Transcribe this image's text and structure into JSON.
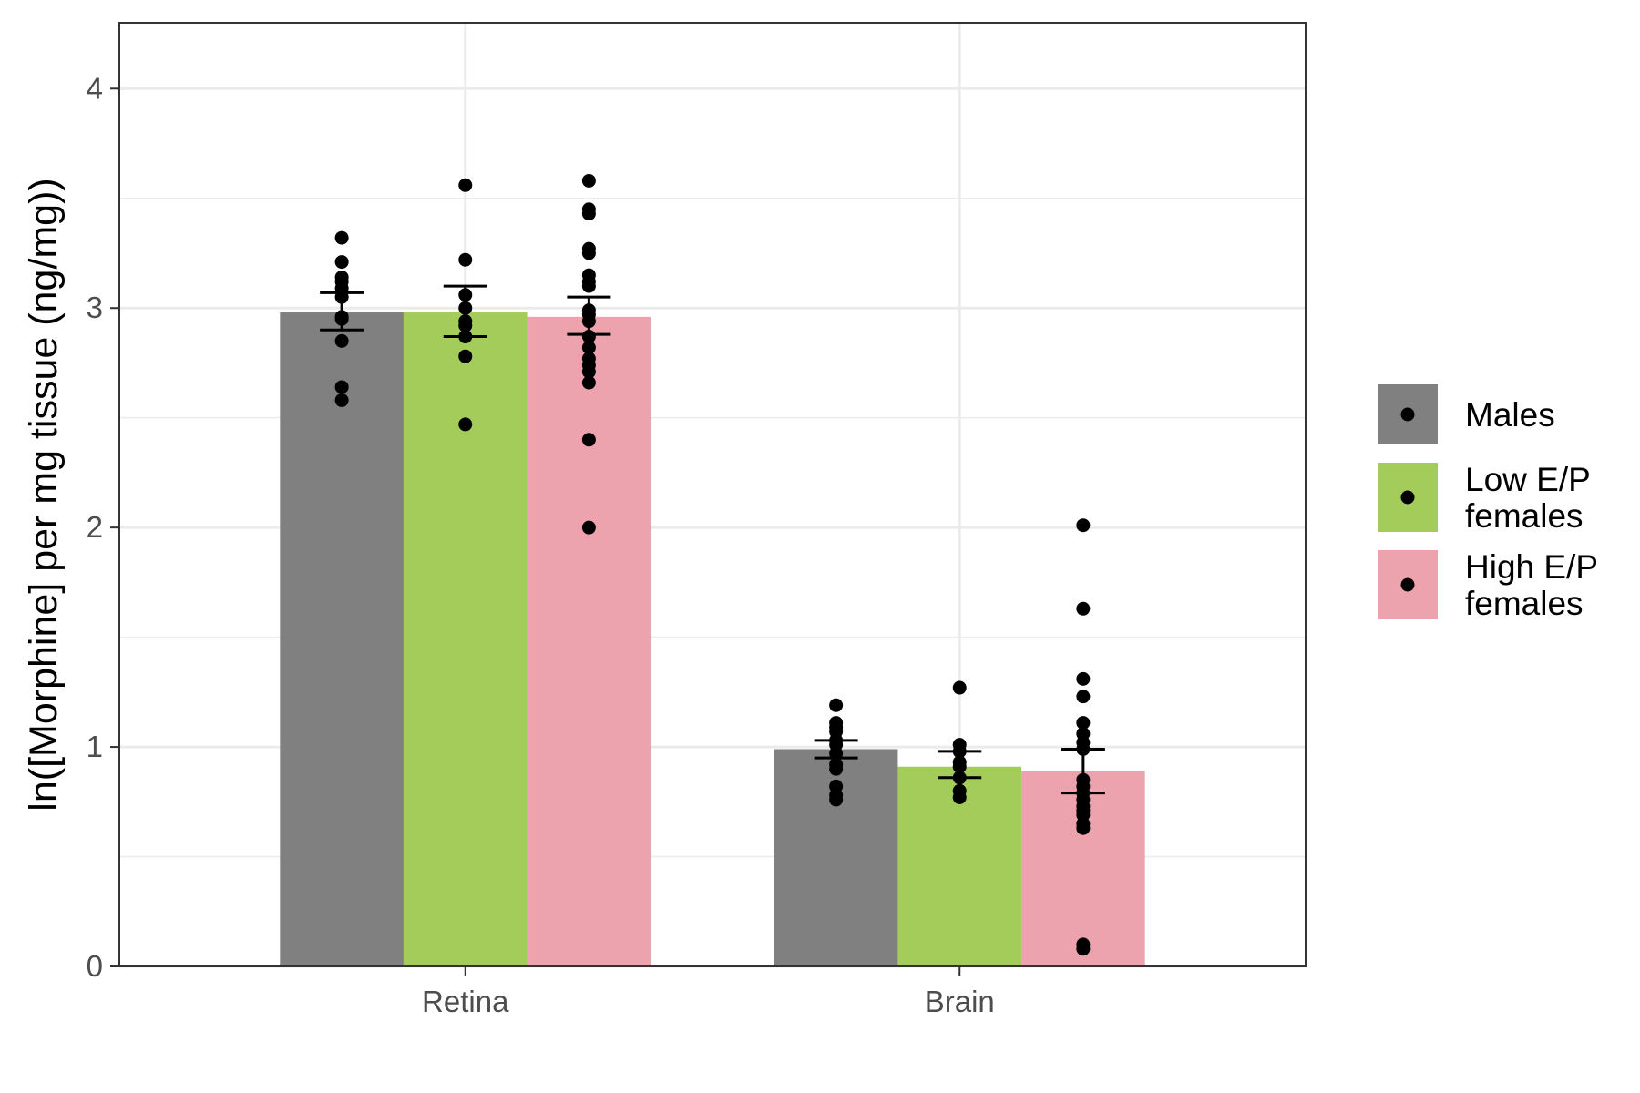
{
  "chart_data": {
    "type": "bar",
    "title": "",
    "xlabel": "",
    "ylabel": "ln([Morphine] per mg tissue (ng/mg))",
    "categories": [
      "Retina",
      "Brain"
    ],
    "ylim": [
      0,
      4.3
    ],
    "yticks": [
      0,
      1,
      2,
      3,
      4
    ],
    "grid": true,
    "legend_position": "right",
    "series": [
      {
        "name": "Males",
        "color": "#808080",
        "values": [
          2.98,
          0.99
        ],
        "se": [
          [
            2.9,
            3.07
          ],
          [
            0.95,
            1.03
          ]
        ],
        "points": [
          [
            3.32,
            3.21,
            3.14,
            3.12,
            3.09,
            3.05,
            2.96,
            2.95,
            2.85,
            2.64,
            2.58
          ],
          [
            1.19,
            1.11,
            1.09,
            1.07,
            1.03,
            1.01,
            0.97,
            0.92,
            0.9,
            0.82,
            0.78,
            0.76
          ]
        ]
      },
      {
        "name": "Low E/P\nfemales",
        "color": "#a3cc5b",
        "values": [
          2.98,
          0.91
        ],
        "se": [
          [
            2.87,
            3.1
          ],
          [
            0.86,
            0.98
          ]
        ],
        "points": [
          [
            3.56,
            3.22,
            3.06,
            3.0,
            2.94,
            2.92,
            2.87,
            2.78,
            2.47
          ],
          [
            1.27,
            1.01,
            0.98,
            0.93,
            0.91,
            0.86,
            0.8,
            0.77
          ]
        ]
      },
      {
        "name": "High E/P\nfemales",
        "color": "#eca3ae",
        "values": [
          2.96,
          0.89
        ],
        "se": [
          [
            2.88,
            3.05
          ],
          [
            0.79,
            0.99
          ]
        ],
        "points": [
          [
            3.58,
            3.45,
            3.43,
            3.27,
            3.25,
            3.15,
            3.12,
            3.1,
            2.99,
            2.97,
            2.94,
            2.87,
            2.82,
            2.77,
            2.74,
            2.71,
            2.66,
            2.4,
            2.0
          ],
          [
            2.01,
            1.63,
            1.31,
            1.23,
            1.11,
            1.06,
            1.02,
            0.99,
            0.85,
            0.82,
            0.79,
            0.76,
            0.73,
            0.71,
            0.69,
            0.65,
            0.63,
            0.1,
            0.08
          ]
        ]
      }
    ]
  }
}
